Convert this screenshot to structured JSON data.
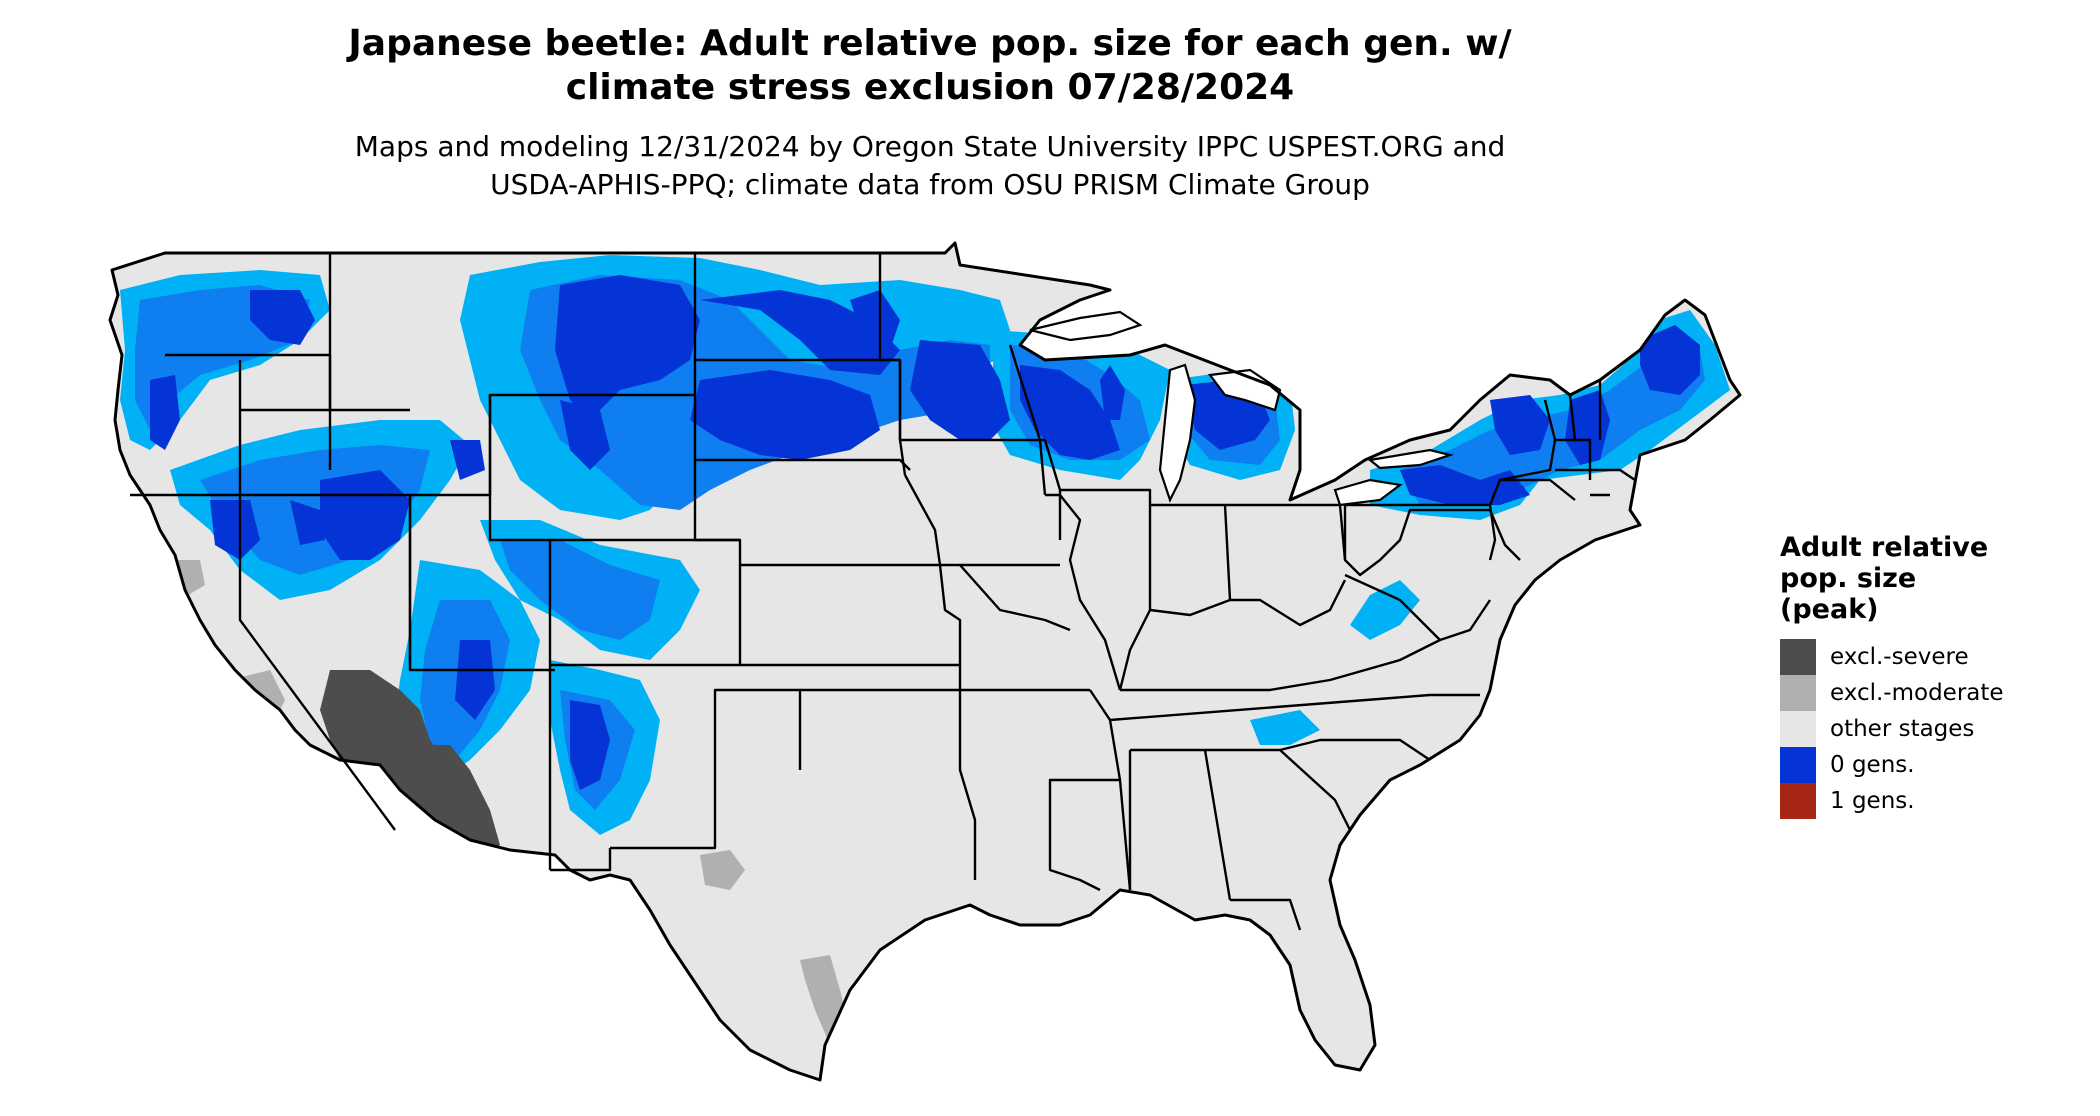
{
  "title": {
    "line1": "Japanese beetle: Adult relative pop. size for each gen. w/",
    "line2": "climate stress exclusion 07/28/2024"
  },
  "subtitle": {
    "line1": "Maps and modeling 12/31/2024 by Oregon State University IPPC USPEST.ORG and",
    "line2": "USDA-APHIS-PPQ; climate data from OSU PRISM Climate Group"
  },
  "legend": {
    "title_lines": [
      "Adult relative",
      "pop. size",
      "(peak)"
    ],
    "items": [
      {
        "label": "excl.-severe",
        "color": "#4d4d4d"
      },
      {
        "label": "excl.-moderate",
        "color": "#b0b0b0"
      },
      {
        "label": "other stages",
        "color": "#e6e6e6"
      },
      {
        "label": "0 gens.",
        "color": "#0433d6"
      },
      {
        "label": "1 gens.",
        "color": "#a62616"
      }
    ]
  },
  "map_colors": {
    "land": "#e6e6e6",
    "border": "#000000",
    "excl_severe": "#4d4d4d",
    "excl_moderate": "#b0b0b0",
    "zero_gens_dark": "#0433d6",
    "zero_gens_mid": "#0f7ef0",
    "zero_gens_light": "#00b2f5"
  }
}
